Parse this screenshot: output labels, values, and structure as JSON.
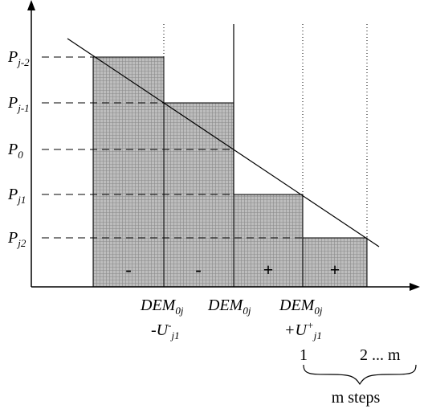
{
  "diagram": {
    "y_labels": [
      {
        "base": "P",
        "sub": "j-2"
      },
      {
        "base": "P",
        "sub": "j-1"
      },
      {
        "base": "P",
        "sub": "0"
      },
      {
        "base": "P",
        "sub": "j1"
      },
      {
        "base": "P",
        "sub": "j2"
      }
    ],
    "bar_signs": [
      "-",
      "-",
      "+",
      "+"
    ],
    "x_labels": {
      "left": {
        "line1_base": "DEM",
        "line1_sub": "0j",
        "line2_prefix": "-U",
        "line2_sup": "-",
        "line2_sub": "j1"
      },
      "middle": {
        "base": "DEM",
        "sub": "0j"
      },
      "right": {
        "line1_base": "DEM",
        "line1_sub": "0j",
        "line2_prefix": "+U",
        "line2_sup": "+",
        "line2_sub": "j1"
      }
    },
    "steps": {
      "start": "1",
      "rest": "2  ...  m",
      "caption": "m steps"
    },
    "colors": {
      "bar_fill": "#bdbdbd",
      "grid": "#8a8a8a",
      "line": "#000000"
    }
  }
}
